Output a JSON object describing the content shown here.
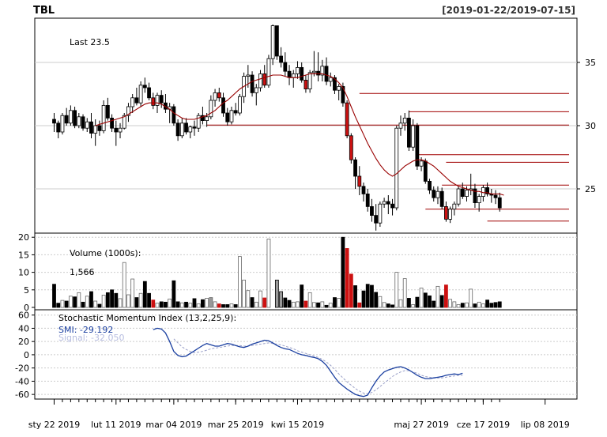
{
  "header": {
    "symbol": "TBL",
    "date_range": "[2019-01-22/2019-07-15]"
  },
  "price_panel": {
    "last_label": "Last 23.5",
    "y_ticks": [
      "35",
      "30",
      "25"
    ]
  },
  "volume_panel": {
    "title": "Volume (1000s):",
    "value": "1,566",
    "y_ticks": [
      "20",
      "15",
      "10",
      "5",
      "0"
    ]
  },
  "smi_panel": {
    "title": "Stochastic Momentum Index (13,2,25,9):",
    "smi_label": "SMI: -29.192",
    "signal_label": "Signal: -32.050",
    "y_ticks": [
      "60",
      "40",
      "20",
      "0",
      "-20",
      "-40",
      "-60"
    ]
  },
  "x_axis": {
    "labels": [
      "sty 22 2019",
      "lut 11 2019",
      "mar 04 2019",
      "mar 25 2019",
      "kwi 15 2019",
      "maj 27 2019",
      "cze 17 2019",
      "lip 08 2019"
    ]
  },
  "colors": {
    "up": "#ffffff",
    "down": "#000000",
    "down_big": "#cc1111",
    "ma_line": "#990000",
    "smi_line": "#1a3fa0",
    "signal_line": "#9aa0c8",
    "grid": "#cccccc"
  },
  "chart_data": {
    "type": "candlestick",
    "title": "TBL",
    "subtitle": "[2019-01-22/2019-07-15]",
    "price_ylim": [
      21.5,
      38.5
    ],
    "volume_ylim": [
      0,
      20.5
    ],
    "smi_ylim": [
      -67,
      68
    ],
    "x_tick_indices": [
      0,
      15,
      29,
      44,
      59,
      89,
      104,
      119
    ],
    "candles": [
      [
        30.5,
        31.0,
        29.5,
        30.2,
        6.6
      ],
      [
        30.2,
        30.4,
        29.0,
        29.5,
        1.2
      ],
      [
        29.5,
        31.0,
        29.3,
        30.8,
        2.0
      ],
      [
        30.8,
        31.4,
        30.0,
        30.2,
        1.8
      ],
      [
        30.2,
        31.6,
        30.0,
        31.2,
        3.2
      ],
      [
        31.2,
        31.5,
        29.8,
        30.0,
        3.0
      ],
      [
        30.0,
        31.0,
        29.8,
        30.7,
        4.2
      ],
      [
        30.7,
        30.9,
        29.6,
        29.8,
        1.5
      ],
      [
        29.8,
        30.6,
        29.5,
        30.3,
        3.2
      ],
      [
        30.3,
        31.0,
        29.0,
        29.4,
        4.5
      ],
      [
        29.4,
        30.5,
        28.4,
        30.0,
        1.8
      ],
      [
        30.0,
        30.4,
        29.2,
        29.6,
        0.9
      ],
      [
        29.6,
        32.0,
        29.4,
        31.6,
        3.5
      ],
      [
        31.6,
        32.2,
        30.4,
        30.6,
        4.2
      ],
      [
        30.6,
        30.9,
        29.5,
        29.8,
        5.0
      ],
      [
        29.8,
        30.4,
        28.4,
        29.5,
        4.0
      ],
      [
        29.5,
        30.2,
        29.0,
        29.8,
        2.5
      ],
      [
        29.8,
        31.0,
        29.7,
        30.8,
        12.8
      ],
      [
        30.8,
        31.8,
        30.3,
        31.5,
        3.6
      ],
      [
        31.5,
        32.5,
        31.0,
        32.2,
        8.1
      ],
      [
        32.2,
        33.0,
        31.6,
        31.8,
        2.8
      ],
      [
        31.8,
        33.5,
        31.5,
        33.2,
        4.0
      ],
      [
        33.2,
        33.8,
        32.6,
        33.0,
        7.4
      ],
      [
        33.0,
        33.4,
        32.0,
        32.2,
        4.0
      ],
      [
        32.2,
        32.6,
        31.3,
        31.6,
        2.1
      ],
      [
        31.6,
        32.6,
        31.0,
        32.4,
        1.2
      ],
      [
        32.4,
        32.8,
        31.4,
        31.8,
        1.6
      ],
      [
        31.8,
        32.5,
        31.0,
        31.3,
        1.5
      ],
      [
        31.3,
        31.8,
        30.2,
        31.5,
        2.4
      ],
      [
        31.5,
        31.7,
        30.0,
        30.2,
        7.6
      ],
      [
        30.2,
        30.5,
        28.8,
        29.2,
        1.6
      ],
      [
        29.2,
        30.6,
        29.0,
        30.2,
        1.3
      ],
      [
        30.2,
        30.6,
        29.3,
        29.5,
        1.5
      ],
      [
        29.5,
        30.0,
        29.0,
        29.9,
        1.2
      ],
      [
        29.9,
        30.4,
        29.2,
        29.8,
        2.5
      ],
      [
        29.8,
        31.0,
        29.5,
        30.8,
        1.0
      ],
      [
        30.8,
        31.5,
        30.1,
        30.4,
        2.2
      ],
      [
        30.4,
        31.0,
        29.9,
        30.7,
        2.6
      ],
      [
        30.7,
        32.4,
        30.5,
        32.0,
        2.8
      ],
      [
        32.0,
        32.9,
        31.5,
        32.6,
        1.6
      ],
      [
        32.6,
        33.0,
        31.9,
        32.2,
        1.0
      ],
      [
        32.2,
        32.6,
        30.7,
        31.0,
        0.8
      ],
      [
        31.0,
        31.4,
        30.0,
        30.3,
        0.8
      ],
      [
        30.3,
        31.5,
        30.1,
        31.2,
        1.0
      ],
      [
        31.2,
        31.8,
        30.8,
        31.0,
        0.8
      ],
      [
        31.0,
        32.5,
        30.8,
        32.3,
        14.5
      ],
      [
        32.3,
        34.2,
        31.8,
        33.9,
        7.8
      ],
      [
        33.9,
        34.8,
        33.0,
        34.0,
        4.8
      ],
      [
        34.0,
        34.3,
        32.3,
        32.6,
        2.8
      ],
      [
        32.6,
        33.3,
        31.6,
        33.0,
        1.5
      ],
      [
        33.0,
        34.4,
        32.7,
        34.1,
        4.7
      ],
      [
        34.1,
        34.8,
        33.0,
        33.2,
        2.7
      ],
      [
        33.2,
        35.6,
        33.0,
        35.3,
        19.5
      ],
      [
        35.3,
        38.0,
        34.8,
        37.9,
        0.0
      ],
      [
        37.9,
        37.9,
        35.2,
        35.5,
        7.8
      ],
      [
        35.5,
        36.2,
        34.6,
        35.0,
        4.5
      ],
      [
        35.0,
        35.8,
        33.9,
        34.3,
        2.7
      ],
      [
        34.3,
        34.8,
        33.2,
        33.8,
        2.0
      ],
      [
        33.8,
        34.4,
        33.0,
        34.1,
        1.5
      ],
      [
        34.1,
        35.1,
        33.7,
        34.6,
        1.6
      ],
      [
        34.6,
        35.0,
        33.4,
        33.6,
        6.4
      ],
      [
        33.6,
        34.0,
        32.6,
        32.9,
        1.8
      ],
      [
        32.9,
        34.4,
        32.6,
        34.2,
        4.2
      ],
      [
        34.2,
        35.9,
        33.9,
        34.3,
        1.4
      ],
      [
        34.3,
        35.8,
        33.5,
        34.0,
        1.3
      ],
      [
        34.0,
        35.2,
        33.5,
        34.7,
        1.6
      ],
      [
        34.7,
        35.4,
        33.2,
        33.5,
        0.6
      ],
      [
        33.5,
        34.2,
        33.1,
        33.8,
        1.2
      ],
      [
        33.8,
        34.0,
        32.5,
        32.8,
        2.8
      ],
      [
        32.8,
        33.3,
        32.0,
        33.1,
        2.6
      ],
      [
        33.1,
        33.4,
        31.5,
        31.8,
        20.0
      ],
      [
        31.8,
        32.0,
        29.0,
        29.2,
        16.8
      ],
      [
        29.2,
        29.4,
        27.0,
        27.3,
        9.5
      ],
      [
        27.3,
        27.5,
        25.0,
        26.0,
        6.2
      ],
      [
        26.0,
        26.8,
        24.5,
        25.2,
        1.3
      ],
      [
        25.2,
        25.5,
        24.0,
        24.6,
        4.7
      ],
      [
        24.6,
        25.0,
        23.2,
        23.6,
        6.6
      ],
      [
        23.6,
        24.2,
        22.4,
        22.9,
        6.3
      ],
      [
        22.9,
        23.8,
        21.7,
        22.3,
        4.3
      ],
      [
        22.3,
        24.0,
        22.0,
        23.8,
        3.1
      ],
      [
        23.8,
        24.3,
        23.5,
        24.0,
        1.4
      ],
      [
        24.0,
        24.5,
        23.0,
        23.8,
        1.0
      ],
      [
        23.8,
        24.2,
        22.9,
        23.5,
        0.7
      ],
      [
        23.5,
        30.0,
        23.3,
        29.8,
        10.0
      ],
      [
        29.8,
        30.8,
        29.2,
        30.2,
        2.2
      ],
      [
        30.2,
        31.0,
        29.6,
        30.6,
        8.2
      ],
      [
        30.6,
        31.2,
        28.0,
        28.3,
        2.6
      ],
      [
        28.3,
        30.5,
        28.0,
        30.0,
        0.8
      ],
      [
        30.0,
        30.2,
        26.5,
        26.8,
        2.9
      ],
      [
        26.8,
        27.5,
        26.4,
        27.2,
        5.5
      ],
      [
        27.2,
        27.4,
        25.4,
        25.6,
        4.1
      ],
      [
        25.6,
        25.8,
        24.6,
        24.9,
        3.3
      ],
      [
        24.9,
        25.2,
        24.0,
        24.3,
        1.8
      ],
      [
        24.3,
        25.2,
        23.8,
        24.8,
        6.0
      ],
      [
        24.8,
        25.1,
        23.4,
        23.6,
        3.4
      ],
      [
        23.6,
        24.0,
        22.4,
        22.6,
        6.4
      ],
      [
        22.6,
        23.6,
        22.3,
        23.4,
        2.3
      ],
      [
        23.4,
        24.0,
        22.9,
        23.8,
        1.6
      ],
      [
        23.8,
        25.2,
        23.6,
        25.0,
        0.8
      ],
      [
        25.0,
        25.5,
        24.2,
        24.4,
        1.2
      ],
      [
        24.4,
        25.2,
        24.0,
        24.9,
        1.3
      ],
      [
        24.9,
        26.2,
        24.5,
        25.0,
        5.2
      ],
      [
        25.0,
        25.4,
        23.5,
        23.9,
        1.0
      ],
      [
        23.9,
        24.6,
        23.2,
        24.4,
        1.5
      ],
      [
        24.4,
        25.3,
        24.0,
        25.1,
        1.0
      ],
      [
        25.1,
        25.5,
        24.4,
        24.6,
        2.1
      ],
      [
        24.6,
        25.0,
        23.9,
        24.5,
        1.2
      ],
      [
        24.5,
        24.9,
        23.8,
        24.3,
        1.4
      ],
      [
        24.3,
        24.7,
        23.2,
        23.5,
        1.6
      ]
    ],
    "big_down_indices": [
      24,
      40,
      49,
      51,
      61,
      71,
      72,
      74,
      95,
      97
    ],
    "ma_line": [
      null,
      null,
      null,
      null,
      null,
      null,
      null,
      null,
      null,
      null,
      30.0,
      30.1,
      30.2,
      30.3,
      30.4,
      30.5,
      30.6,
      30.7,
      30.9,
      31.1,
      31.3,
      31.5,
      31.7,
      31.8,
      31.8,
      31.8,
      31.7,
      31.5,
      31.3,
      31.0,
      30.8,
      30.6,
      30.5,
      30.5,
      30.5,
      30.6,
      30.7,
      30.8,
      31.0,
      31.2,
      31.5,
      31.8,
      32.0,
      32.3,
      32.6,
      32.9,
      33.1,
      33.3,
      33.5,
      33.6,
      33.7,
      33.8,
      33.9,
      34.0,
      34.0,
      34.0,
      33.9,
      33.8,
      33.8,
      33.8,
      33.9,
      34.0,
      34.1,
      34.1,
      34.1,
      34.1,
      34.0,
      33.9,
      33.7,
      33.4,
      33.0,
      32.3,
      31.5,
      30.7,
      30.0,
      29.3,
      28.6,
      28.0,
      27.4,
      26.9,
      26.5,
      26.2,
      26.0,
      26.2,
      26.5,
      26.8,
      27.0,
      27.2,
      27.3,
      27.3,
      27.2,
      27.0,
      26.8,
      26.5,
      26.2,
      25.9,
      25.6,
      25.4,
      25.2,
      25.1,
      25.0,
      24.9,
      24.8,
      24.8,
      24.7,
      24.7,
      24.6,
      24.6,
      24.6,
      24.5
    ],
    "support_resistance_lines": [
      {
        "y": 32.55,
        "x_start": 74
      },
      {
        "y": 31.1,
        "x_start": 86
      },
      {
        "y": 30.05,
        "x_start": 37
      },
      {
        "y": 27.7,
        "x_start": 88
      },
      {
        "y": 27.1,
        "x_start": 95
      },
      {
        "y": 25.3,
        "x_start": 94
      },
      {
        "y": 23.4,
        "x_start": 90
      },
      {
        "y": 22.45,
        "x_start": 105
      }
    ],
    "smi": [
      null,
      null,
      null,
      null,
      null,
      null,
      null,
      null,
      null,
      null,
      null,
      null,
      null,
      null,
      null,
      null,
      null,
      null,
      null,
      null,
      null,
      null,
      null,
      null,
      38,
      40,
      39,
      33,
      20,
      5,
      -1,
      -3,
      -2,
      2,
      6,
      10,
      14,
      17,
      15,
      13,
      13,
      15,
      17,
      16,
      14,
      12,
      11,
      13,
      16,
      18,
      20,
      22,
      21,
      18,
      14,
      11,
      9,
      8,
      5,
      2,
      0,
      -1,
      -3,
      -4,
      -6,
      -10,
      -16,
      -25,
      -34,
      -42,
      -47,
      -52,
      -56,
      -60,
      -62,
      -63,
      -61,
      -50,
      -40,
      -32,
      -26,
      -23,
      -21,
      -19,
      -18,
      -20,
      -23,
      -27,
      -31,
      -34,
      -36,
      -36,
      -35,
      -34,
      -33,
      -31,
      -30,
      -29,
      -30,
      -28,
      null,
      null,
      null,
      null,
      null,
      null,
      null,
      null,
      null,
      null
    ],
    "signal": [
      null,
      null,
      null,
      null,
      null,
      null,
      null,
      null,
      null,
      null,
      null,
      null,
      null,
      null,
      null,
      null,
      null,
      null,
      null,
      null,
      null,
      null,
      null,
      null,
      null,
      null,
      null,
      null,
      null,
      24,
      18,
      12,
      8,
      5,
      3,
      4,
      5,
      7,
      9,
      10,
      11,
      12,
      13,
      14,
      14,
      14,
      13,
      13,
      14,
      15,
      16,
      17,
      18,
      17,
      16,
      15,
      13,
      11,
      9,
      6,
      4,
      2,
      0,
      -2,
      -4,
      -7,
      -11,
      -16,
      -22,
      -29,
      -35,
      -41,
      -46,
      -51,
      -55,
      -58,
      -59,
      -57,
      -53,
      -48,
      -43,
      -38,
      -33,
      -29,
      -26,
      -24,
      -24,
      -26,
      -28,
      -31,
      -33,
      -34,
      -35,
      -35,
      -35,
      -34,
      -33,
      -32,
      -31,
      -31,
      null,
      null,
      null,
      null,
      null,
      null,
      null,
      null,
      null,
      null
    ]
  }
}
